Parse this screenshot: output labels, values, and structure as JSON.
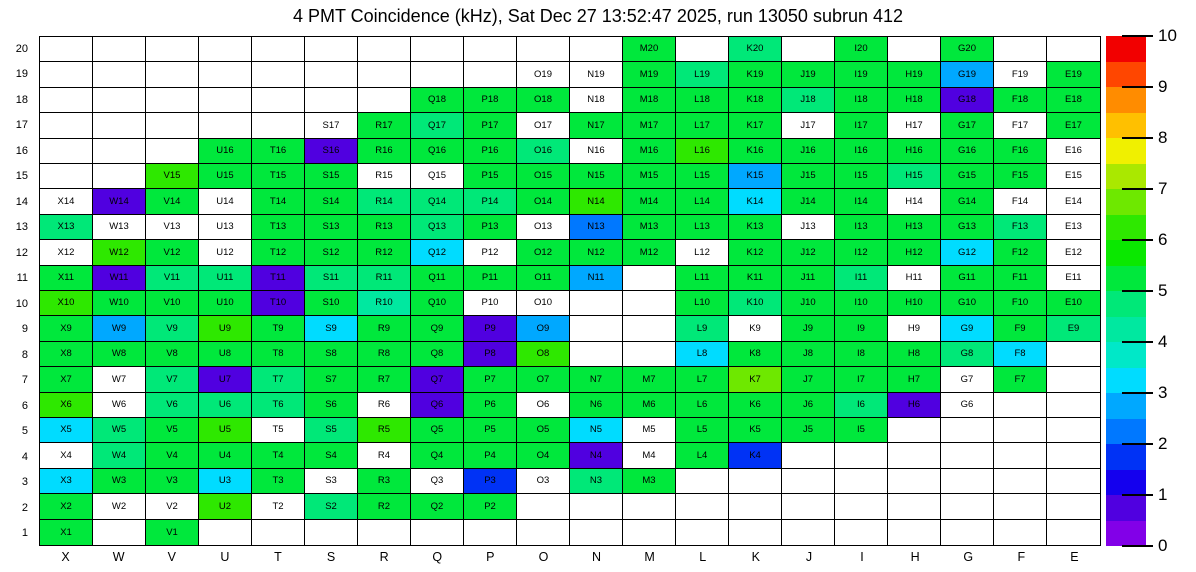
{
  "title": "4 PMT Coincidence (kHz), Sat Dec 27 13:52:47 2025, run 13050 subrun 412",
  "chart_data": {
    "type": "heatmap",
    "title": "4 PMT Coincidence (kHz), Sat Dec 27 13:52:47 2025, run 13050 subrun 412",
    "value_unit": "kHz",
    "x_categories": [
      "X",
      "W",
      "V",
      "U",
      "T",
      "S",
      "R",
      "Q",
      "P",
      "O",
      "N",
      "M",
      "L",
      "K",
      "J",
      "I",
      "H",
      "G",
      "F",
      "E"
    ],
    "y_categories": [
      20,
      19,
      18,
      17,
      16,
      15,
      14,
      13,
      12,
      11,
      10,
      9,
      8,
      7,
      6,
      5,
      4,
      3,
      2,
      1
    ],
    "empty_color": "#ffffff",
    "colorbar": {
      "min": 0,
      "max": 10,
      "ticks": [
        0,
        1,
        2,
        3,
        4,
        5,
        6,
        7,
        8,
        9,
        10
      ],
      "palette": [
        "#8200E8",
        "#5000E0",
        "#1400EE",
        "#0032F5",
        "#0078FF",
        "#00A8FF",
        "#00DCFF",
        "#00E8C8",
        "#00E8A0",
        "#00E878",
        "#00E83C",
        "#0AE800",
        "#2EE800",
        "#6EE800",
        "#AAE800",
        "#F0F000",
        "#FFC000",
        "#FF8C00",
        "#FF4600",
        "#F20000"
      ]
    },
    "cells": [
      {
        "label": "M20",
        "value": 5.3
      },
      {
        "label": "K20",
        "value": 4.7
      },
      {
        "label": "I20",
        "value": 5.3
      },
      {
        "label": "G20",
        "value": 5.3
      },
      {
        "label": "O19",
        "value": null
      },
      {
        "label": "N19",
        "value": null
      },
      {
        "label": "M19",
        "value": 5.3
      },
      {
        "label": "L19",
        "value": 4.7
      },
      {
        "label": "K19",
        "value": 5.3
      },
      {
        "label": "J19",
        "value": 5.3
      },
      {
        "label": "I19",
        "value": 5.3
      },
      {
        "label": "H19",
        "value": 5.3
      },
      {
        "label": "G19",
        "value": 2.7
      },
      {
        "label": "F19",
        "value": null
      },
      {
        "label": "E19",
        "value": 5.3
      },
      {
        "label": "Q18",
        "value": 5.3
      },
      {
        "label": "P18",
        "value": 5.3
      },
      {
        "label": "O18",
        "value": 5.3
      },
      {
        "label": "N18",
        "value": null
      },
      {
        "label": "M18",
        "value": 5.3
      },
      {
        "label": "L18",
        "value": 5.3
      },
      {
        "label": "K18",
        "value": 5.3
      },
      {
        "label": "J18",
        "value": 4.7
      },
      {
        "label": "I18",
        "value": 5.3
      },
      {
        "label": "H18",
        "value": 5.3
      },
      {
        "label": "G18",
        "value": 0.7
      },
      {
        "label": "F18",
        "value": 5.3
      },
      {
        "label": "E18",
        "value": 5.3
      },
      {
        "label": "S17",
        "value": null
      },
      {
        "label": "R17",
        "value": 5.3
      },
      {
        "label": "Q17",
        "value": 4.7
      },
      {
        "label": "P17",
        "value": 5.3
      },
      {
        "label": "O17",
        "value": null
      },
      {
        "label": "N17",
        "value": 5.3
      },
      {
        "label": "M17",
        "value": 5.3
      },
      {
        "label": "L17",
        "value": 5.3
      },
      {
        "label": "K17",
        "value": 5.3
      },
      {
        "label": "J17",
        "value": null
      },
      {
        "label": "I17",
        "value": 5.3
      },
      {
        "label": "H17",
        "value": null
      },
      {
        "label": "G17",
        "value": 5.3
      },
      {
        "label": "F17",
        "value": null
      },
      {
        "label": "E17",
        "value": 5.3
      },
      {
        "label": "U16",
        "value": 5.3
      },
      {
        "label": "T16",
        "value": 5.3
      },
      {
        "label": "S16",
        "value": 0.7
      },
      {
        "label": "R16",
        "value": 5.3
      },
      {
        "label": "Q16",
        "value": 5.3
      },
      {
        "label": "P16",
        "value": 5.3
      },
      {
        "label": "O16",
        "value": 4.7
      },
      {
        "label": "N16",
        "value": null
      },
      {
        "label": "M16",
        "value": 5.3
      },
      {
        "label": "L16",
        "value": 6.2
      },
      {
        "label": "K16",
        "value": 5.3
      },
      {
        "label": "J16",
        "value": 5.3
      },
      {
        "label": "I16",
        "value": 5.3
      },
      {
        "label": "H16",
        "value": 5.3
      },
      {
        "label": "G16",
        "value": 5.3
      },
      {
        "label": "F16",
        "value": 5.3
      },
      {
        "label": "E16",
        "value": null
      },
      {
        "label": "V15",
        "value": 6.2
      },
      {
        "label": "U15",
        "value": 5.3
      },
      {
        "label": "T15",
        "value": 5.3
      },
      {
        "label": "S15",
        "value": 5.3
      },
      {
        "label": "R15",
        "value": null
      },
      {
        "label": "Q15",
        "value": null
      },
      {
        "label": "P15",
        "value": 5.3
      },
      {
        "label": "O15",
        "value": 5.3
      },
      {
        "label": "N15",
        "value": 5.3
      },
      {
        "label": "M15",
        "value": 5.3
      },
      {
        "label": "L15",
        "value": 5.3
      },
      {
        "label": "K15",
        "value": 2.7
      },
      {
        "label": "J15",
        "value": 5.3
      },
      {
        "label": "I15",
        "value": 5.3
      },
      {
        "label": "H15",
        "value": 4.7
      },
      {
        "label": "G15",
        "value": 5.3
      },
      {
        "label": "F15",
        "value": 5.3
      },
      {
        "label": "E15",
        "value": null
      },
      {
        "label": "X14",
        "value": null
      },
      {
        "label": "W14",
        "value": 0.7
      },
      {
        "label": "V14",
        "value": 5.3
      },
      {
        "label": "U14",
        "value": null
      },
      {
        "label": "T14",
        "value": 5.3
      },
      {
        "label": "S14",
        "value": 5.3
      },
      {
        "label": "R14",
        "value": 4.7
      },
      {
        "label": "Q14",
        "value": 4.7
      },
      {
        "label": "P14",
        "value": 4.7
      },
      {
        "label": "O14",
        "value": 5.3
      },
      {
        "label": "N14",
        "value": 6.2
      },
      {
        "label": "M14",
        "value": 5.3
      },
      {
        "label": "L14",
        "value": 5.3
      },
      {
        "label": "K14",
        "value": 3.3
      },
      {
        "label": "J14",
        "value": 5.3
      },
      {
        "label": "I14",
        "value": 5.3
      },
      {
        "label": "H14",
        "value": null
      },
      {
        "label": "G14",
        "value": 5.3
      },
      {
        "label": "F14",
        "value": null
      },
      {
        "label": "E14",
        "value": null
      },
      {
        "label": "X13",
        "value": 4.7
      },
      {
        "label": "W13",
        "value": null
      },
      {
        "label": "V13",
        "value": null
      },
      {
        "label": "U13",
        "value": null
      },
      {
        "label": "T13",
        "value": 5.3
      },
      {
        "label": "S13",
        "value": 5.3
      },
      {
        "label": "R13",
        "value": 5.3
      },
      {
        "label": "Q13",
        "value": 4.7
      },
      {
        "label": "P13",
        "value": 5.3
      },
      {
        "label": "O13",
        "value": null
      },
      {
        "label": "N13",
        "value": 2.2
      },
      {
        "label": "M13",
        "value": 5.3
      },
      {
        "label": "L13",
        "value": 5.3
      },
      {
        "label": "K13",
        "value": 5.3
      },
      {
        "label": "J13",
        "value": null
      },
      {
        "label": "I13",
        "value": 5.3
      },
      {
        "label": "H13",
        "value": 5.3
      },
      {
        "label": "G13",
        "value": 5.3
      },
      {
        "label": "F13",
        "value": 4.7
      },
      {
        "label": "E13",
        "value": null
      },
      {
        "label": "X12",
        "value": null
      },
      {
        "label": "W12",
        "value": 6.2
      },
      {
        "label": "V12",
        "value": 5.3
      },
      {
        "label": "U12",
        "value": null
      },
      {
        "label": "T12",
        "value": 5.3
      },
      {
        "label": "S12",
        "value": 5.3
      },
      {
        "label": "R12",
        "value": 5.3
      },
      {
        "label": "Q12",
        "value": 3.3
      },
      {
        "label": "P12",
        "value": null
      },
      {
        "label": "O12",
        "value": 5.3
      },
      {
        "label": "N12",
        "value": 5.3
      },
      {
        "label": "M12",
        "value": 5.3
      },
      {
        "label": "L12",
        "value": null
      },
      {
        "label": "K12",
        "value": 5.3
      },
      {
        "label": "J12",
        "value": 5.3
      },
      {
        "label": "I12",
        "value": 5.3
      },
      {
        "label": "H12",
        "value": 5.3
      },
      {
        "label": "G12",
        "value": 3.3
      },
      {
        "label": "F12",
        "value": 5.3
      },
      {
        "label": "E12",
        "value": null
      },
      {
        "label": "X11",
        "value": 5.3
      },
      {
        "label": "W11",
        "value": 0.7
      },
      {
        "label": "V11",
        "value": 4.7
      },
      {
        "label": "U11",
        "value": 4.7
      },
      {
        "label": "T11",
        "value": 0.7
      },
      {
        "label": "S11",
        "value": 4.7
      },
      {
        "label": "R11",
        "value": 4.7
      },
      {
        "label": "Q11",
        "value": 5.3
      },
      {
        "label": "P11",
        "value": 5.3
      },
      {
        "label": "O11",
        "value": 5.3
      },
      {
        "label": "N11",
        "value": 2.7
      },
      {
        "label": "L11",
        "value": 5.3
      },
      {
        "label": "K11",
        "value": 5.3
      },
      {
        "label": "J11",
        "value": 5.3
      },
      {
        "label": "I11",
        "value": 4.7
      },
      {
        "label": "H11",
        "value": null
      },
      {
        "label": "G11",
        "value": 5.3
      },
      {
        "label": "F11",
        "value": 5.3
      },
      {
        "label": "E11",
        "value": null
      },
      {
        "label": "X10",
        "value": 6.2
      },
      {
        "label": "W10",
        "value": 5.3
      },
      {
        "label": "V10",
        "value": 5.3
      },
      {
        "label": "U10",
        "value": 5.3
      },
      {
        "label": "T10",
        "value": 0.7
      },
      {
        "label": "S10",
        "value": 5.3
      },
      {
        "label": "R10",
        "value": 4.1
      },
      {
        "label": "Q10",
        "value": 5.3
      },
      {
        "label": "P10",
        "value": null
      },
      {
        "label": "O10",
        "value": null
      },
      {
        "label": "L10",
        "value": 5.3
      },
      {
        "label": "K10",
        "value": 4.7
      },
      {
        "label": "J10",
        "value": 5.3
      },
      {
        "label": "I10",
        "value": 5.3
      },
      {
        "label": "H10",
        "value": 5.3
      },
      {
        "label": "G10",
        "value": 5.3
      },
      {
        "label": "F10",
        "value": 5.3
      },
      {
        "label": "E10",
        "value": 5.3
      },
      {
        "label": "X9",
        "value": 5.3
      },
      {
        "label": "W9",
        "value": 2.7
      },
      {
        "label": "V9",
        "value": 4.7
      },
      {
        "label": "U9",
        "value": 6.2
      },
      {
        "label": "T9",
        "value": 5.3
      },
      {
        "label": "S9",
        "value": 3.3
      },
      {
        "label": "R9",
        "value": 5.3
      },
      {
        "label": "Q9",
        "value": 5.3
      },
      {
        "label": "P9",
        "value": 0.7
      },
      {
        "label": "O9",
        "value": 2.7
      },
      {
        "label": "L9",
        "value": 4.7
      },
      {
        "label": "K9",
        "value": null
      },
      {
        "label": "J9",
        "value": 5.3
      },
      {
        "label": "I9",
        "value": 5.3
      },
      {
        "label": "H9",
        "value": null
      },
      {
        "label": "G9",
        "value": 3.3
      },
      {
        "label": "F9",
        "value": 5.3
      },
      {
        "label": "E9",
        "value": 4.7
      },
      {
        "label": "X8",
        "value": 5.3
      },
      {
        "label": "W8",
        "value": 5.3
      },
      {
        "label": "V8",
        "value": 5.3
      },
      {
        "label": "U8",
        "value": 5.3
      },
      {
        "label": "T8",
        "value": 5.3
      },
      {
        "label": "S8",
        "value": 5.3
      },
      {
        "label": "R8",
        "value": 5.3
      },
      {
        "label": "Q8",
        "value": 5.3
      },
      {
        "label": "P8",
        "value": 0.7
      },
      {
        "label": "O8",
        "value": 6.2
      },
      {
        "label": "L8",
        "value": 3.3
      },
      {
        "label": "K8",
        "value": 5.3
      },
      {
        "label": "J8",
        "value": 5.3
      },
      {
        "label": "I8",
        "value": 5.3
      },
      {
        "label": "H8",
        "value": 5.3
      },
      {
        "label": "G8",
        "value": 4.7
      },
      {
        "label": "F8",
        "value": 3.3
      },
      {
        "label": "X7",
        "value": 5.3
      },
      {
        "label": "W7",
        "value": null
      },
      {
        "label": "V7",
        "value": 4.7
      },
      {
        "label": "U7",
        "value": 0.7
      },
      {
        "label": "T7",
        "value": 4.7
      },
      {
        "label": "S7",
        "value": 5.3
      },
      {
        "label": "R7",
        "value": 5.3
      },
      {
        "label": "Q7",
        "value": 0.7
      },
      {
        "label": "P7",
        "value": 5.3
      },
      {
        "label": "O7",
        "value": 5.3
      },
      {
        "label": "N7",
        "value": 5.3
      },
      {
        "label": "M7",
        "value": 5.3
      },
      {
        "label": "L7",
        "value": 5.3
      },
      {
        "label": "K7",
        "value": 6.7
      },
      {
        "label": "J7",
        "value": 5.3
      },
      {
        "label": "I7",
        "value": 5.3
      },
      {
        "label": "H7",
        "value": 5.3
      },
      {
        "label": "G7",
        "value": null
      },
      {
        "label": "F7",
        "value": 5.3
      },
      {
        "label": "X6",
        "value": 6.2
      },
      {
        "label": "W6",
        "value": null
      },
      {
        "label": "V6",
        "value": 4.7
      },
      {
        "label": "U6",
        "value": 4.7
      },
      {
        "label": "T6",
        "value": 4.7
      },
      {
        "label": "S6",
        "value": 5.3
      },
      {
        "label": "R6",
        "value": null
      },
      {
        "label": "Q6",
        "value": 0.7
      },
      {
        "label": "P6",
        "value": 5.3
      },
      {
        "label": "O6",
        "value": null
      },
      {
        "label": "N6",
        "value": 5.3
      },
      {
        "label": "M6",
        "value": 5.3
      },
      {
        "label": "L6",
        "value": 5.3
      },
      {
        "label": "K6",
        "value": 5.3
      },
      {
        "label": "J6",
        "value": 5.3
      },
      {
        "label": "I6",
        "value": 4.7
      },
      {
        "label": "H6",
        "value": 0.7
      },
      {
        "label": "G6",
        "value": null
      },
      {
        "label": "X5",
        "value": 3.3
      },
      {
        "label": "W5",
        "value": 4.7
      },
      {
        "label": "V5",
        "value": 5.3
      },
      {
        "label": "U5",
        "value": 6.2
      },
      {
        "label": "T5",
        "value": null
      },
      {
        "label": "S5",
        "value": 4.7
      },
      {
        "label": "R5",
        "value": 6.2
      },
      {
        "label": "Q5",
        "value": 5.3
      },
      {
        "label": "P5",
        "value": 5.3
      },
      {
        "label": "O5",
        "value": 5.3
      },
      {
        "label": "N5",
        "value": 3.3
      },
      {
        "label": "M5",
        "value": null
      },
      {
        "label": "L5",
        "value": 5.3
      },
      {
        "label": "K5",
        "value": 5.3
      },
      {
        "label": "J5",
        "value": 5.3
      },
      {
        "label": "I5",
        "value": 5.3
      },
      {
        "label": "X4",
        "value": null
      },
      {
        "label": "W4",
        "value": 4.7
      },
      {
        "label": "V4",
        "value": 5.3
      },
      {
        "label": "U4",
        "value": 5.3
      },
      {
        "label": "T4",
        "value": 5.3
      },
      {
        "label": "S4",
        "value": 5.3
      },
      {
        "label": "R4",
        "value": null
      },
      {
        "label": "Q4",
        "value": 5.3
      },
      {
        "label": "P4",
        "value": 5.3
      },
      {
        "label": "O4",
        "value": 5.3
      },
      {
        "label": "N4",
        "value": 0.7
      },
      {
        "label": "M4",
        "value": null
      },
      {
        "label": "L4",
        "value": 5.3
      },
      {
        "label": "K4",
        "value": 1.7
      },
      {
        "label": "X3",
        "value": 3.3
      },
      {
        "label": "W3",
        "value": 5.3
      },
      {
        "label": "V3",
        "value": 5.3
      },
      {
        "label": "U3",
        "value": 3.3
      },
      {
        "label": "T3",
        "value": 5.3
      },
      {
        "label": "S3",
        "value": null
      },
      {
        "label": "R3",
        "value": 5.3
      },
      {
        "label": "Q3",
        "value": null
      },
      {
        "label": "P3",
        "value": 1.7
      },
      {
        "label": "O3",
        "value": null
      },
      {
        "label": "N3",
        "value": 4.7
      },
      {
        "label": "M3",
        "value": 5.3
      },
      {
        "label": "X2",
        "value": 5.3
      },
      {
        "label": "W2",
        "value": null
      },
      {
        "label": "V2",
        "value": null
      },
      {
        "label": "U2",
        "value": 6.2
      },
      {
        "label": "T2",
        "value": null
      },
      {
        "label": "S2",
        "value": 4.7
      },
      {
        "label": "R2",
        "value": 5.3
      },
      {
        "label": "Q2",
        "value": 5.3
      },
      {
        "label": "P2",
        "value": 5.3
      },
      {
        "label": "X1",
        "value": 5.3
      },
      {
        "label": "V1",
        "value": 5.3
      }
    ]
  }
}
